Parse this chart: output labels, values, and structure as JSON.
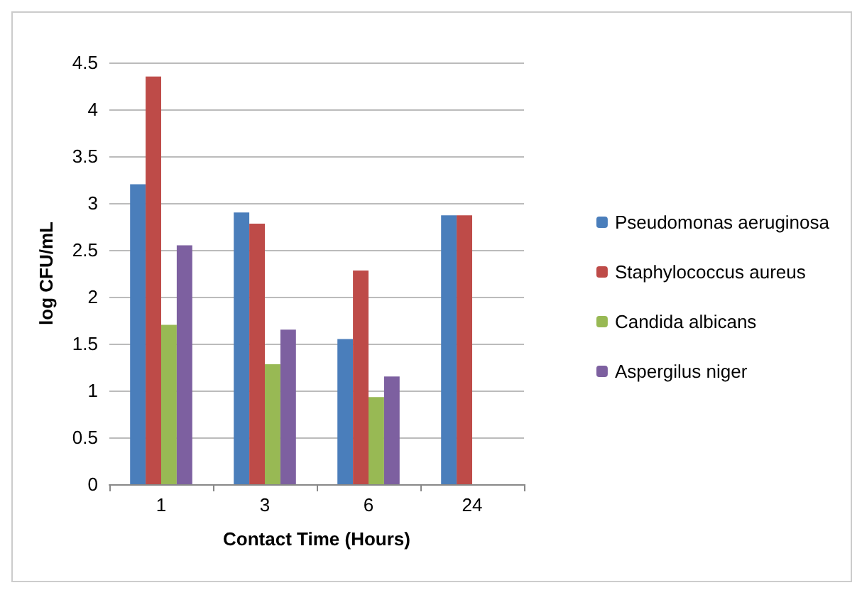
{
  "chart_data": {
    "type": "bar",
    "xlabel": "Contact Time (Hours)",
    "ylabel": "log CFU/mL",
    "categories": [
      "1",
      "3",
      "6",
      "24"
    ],
    "series": [
      {
        "name": "Pseudomonas aeruginosa",
        "color": "#4a7ebb",
        "values": [
          3.2,
          2.9,
          1.55,
          2.87
        ]
      },
      {
        "name": "Staphylococcus aureus",
        "color": "#be4b48",
        "values": [
          4.35,
          2.78,
          2.28,
          2.87
        ]
      },
      {
        "name": "Candida albicans",
        "color": "#98b954",
        "values": [
          1.7,
          1.28,
          0.93,
          0
        ]
      },
      {
        "name": "Aspergilus niger",
        "color": "#7d60a0",
        "values": [
          2.55,
          1.65,
          1.15,
          0
        ]
      }
    ],
    "ylim": [
      0,
      4.5
    ],
    "yticks": [
      0,
      0.5,
      1,
      1.5,
      2,
      2.5,
      3,
      3.5,
      4,
      4.5
    ],
    "grid": "y",
    "legend": "right"
  }
}
